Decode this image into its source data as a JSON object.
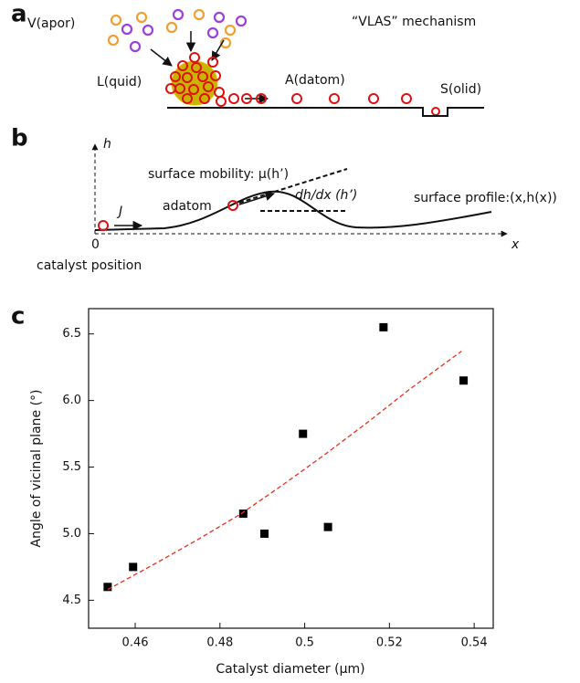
{
  "panel_a": {
    "label": "a",
    "vapor": "V(apor)",
    "title": "“VLAS” mechanism",
    "liquid": "L(quid)",
    "adatom": "A(datom)",
    "solid": "S(olid)"
  },
  "panel_b": {
    "label": "b",
    "h_axis": "h",
    "mobility": "surface mobility: μ(h’)",
    "adatom": "adatom",
    "slope": "dh/dx (h’)",
    "profile": "surface profile:(x,h(x))",
    "flux": "J",
    "origin": "0",
    "x_axis": "x",
    "catalyst": "catalyst position"
  },
  "panel_c": {
    "label": "c"
  },
  "chart_data": {
    "type": "scatter",
    "x_label": "Catalyst diameter (μm)",
    "y_label": "Angle of vicinal plane (°)",
    "xlim": [
      0.449,
      0.5445
    ],
    "ylim": [
      4.29,
      6.69
    ],
    "xticks": [
      0.46,
      0.48,
      0.5,
      0.52,
      0.54
    ],
    "yticks": [
      4.5,
      {
        "value": 5,
        "label": "5.0"
      },
      5.5,
      {
        "value": 6,
        "label": "6.0"
      },
      6.5
    ],
    "series": [
      {
        "kind": "marker",
        "color": "#000000",
        "x": [
          0.4535,
          0.4595,
          0.4855,
          0.4905,
          0.4996,
          0.5055,
          0.5186,
          0.5375
        ],
        "values": [
          4.6,
          4.75,
          5.15,
          5.0,
          5.75,
          5.05,
          6.55,
          6.15
        ]
      },
      {
        "kind": "dashed-line",
        "color": "#e8301c",
        "x": [
          0.4535,
          0.465,
          0.475,
          0.485,
          0.495,
          0.505,
          0.515,
          0.525,
          0.537
        ],
        "values": [
          4.58,
          4.78,
          4.96,
          5.15,
          5.37,
          5.6,
          5.84,
          6.09,
          6.37
        ]
      }
    ]
  }
}
